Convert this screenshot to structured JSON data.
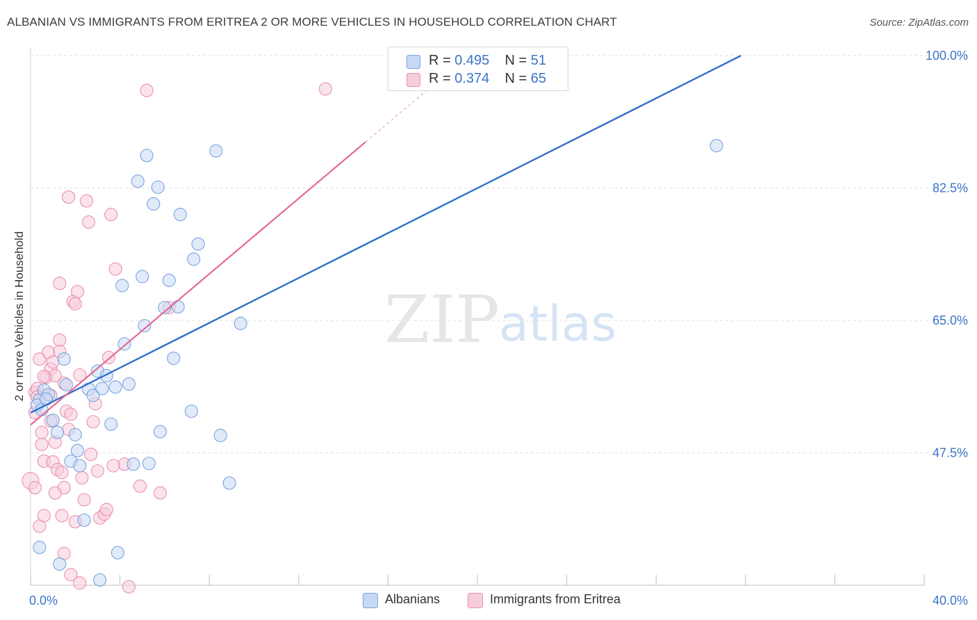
{
  "title": "ALBANIAN VS IMMIGRANTS FROM ERITREA 2 OR MORE VEHICLES IN HOUSEHOLD CORRELATION CHART",
  "source": "Source: ZipAtlas.com",
  "watermark": {
    "zip": "ZIP",
    "atlas": "atlas"
  },
  "colors": {
    "blue_fill": "#c6d8f4",
    "blue_stroke": "#7aa3de",
    "blue_line": "#2f6fcd",
    "pink_fill": "#f7ccdc",
    "pink_stroke": "#ea8fb0",
    "pink_line": "#e36a93",
    "axis_text": "#3b74c8",
    "grid": "#e2e2e2"
  },
  "legend": {
    "rows": [
      {
        "r_label": "R =",
        "r_value": "0.495",
        "n_label": "N =",
        "n_value": "51",
        "series": "blue"
      },
      {
        "r_label": "R =",
        "r_value": "0.374",
        "n_label": "N =",
        "n_value": "65",
        "series": "pink"
      }
    ]
  },
  "chart_data": {
    "type": "scatter",
    "title": "ALBANIAN VS IMMIGRANTS FROM ERITREA 2 OR MORE VEHICLES IN HOUSEHOLD CORRELATION CHART",
    "xlabel": "",
    "ylabel": "2 or more Vehicles in Household",
    "xlim": [
      0,
      40
    ],
    "ylim": [
      30,
      100
    ],
    "x_tick_labels": [
      "0.0%",
      "40.0%"
    ],
    "y_ticks": [
      47.5,
      65.0,
      82.5,
      100.0
    ],
    "y_tick_labels": [
      "47.5%",
      "65.0%",
      "82.5%",
      "100.0%"
    ],
    "grid": true,
    "series": [
      {
        "name": "Albanians",
        "color": "blue",
        "r": 0.495,
        "n": 51,
        "trend": {
          "x": [
            0,
            31.8
          ],
          "y": [
            52.8,
            100.0
          ]
        },
        "points": [
          [
            0.4,
            54.5
          ],
          [
            0.6,
            55.8
          ],
          [
            0.8,
            55.2
          ],
          [
            0.3,
            53.8
          ],
          [
            0.5,
            53.2
          ],
          [
            0.7,
            54.6
          ],
          [
            1.0,
            51.8
          ],
          [
            1.2,
            50.2
          ],
          [
            1.5,
            59.9
          ],
          [
            1.6,
            56.5
          ],
          [
            1.8,
            46.4
          ],
          [
            2.0,
            49.9
          ],
          [
            2.1,
            47.8
          ],
          [
            2.2,
            45.8
          ],
          [
            2.4,
            38.6
          ],
          [
            2.6,
            55.9
          ],
          [
            2.8,
            55.1
          ],
          [
            3.0,
            58.3
          ],
          [
            3.2,
            56.0
          ],
          [
            3.4,
            57.7
          ],
          [
            3.6,
            51.3
          ],
          [
            3.8,
            56.2
          ],
          [
            3.9,
            34.3
          ],
          [
            4.1,
            69.6
          ],
          [
            4.2,
            61.9
          ],
          [
            4.4,
            56.6
          ],
          [
            4.6,
            46.0
          ],
          [
            4.8,
            83.4
          ],
          [
            5.0,
            70.8
          ],
          [
            5.1,
            64.3
          ],
          [
            5.2,
            86.8
          ],
          [
            5.3,
            46.1
          ],
          [
            5.5,
            80.4
          ],
          [
            5.7,
            82.6
          ],
          [
            5.8,
            50.3
          ],
          [
            6.0,
            66.7
          ],
          [
            6.2,
            70.3
          ],
          [
            6.4,
            60.0
          ],
          [
            6.6,
            66.8
          ],
          [
            6.7,
            79.0
          ],
          [
            7.2,
            53.0
          ],
          [
            7.3,
            73.1
          ],
          [
            7.5,
            75.1
          ],
          [
            8.3,
            87.4
          ],
          [
            8.5,
            49.8
          ],
          [
            8.9,
            43.5
          ],
          [
            9.4,
            64.6
          ],
          [
            1.3,
            32.8
          ],
          [
            3.1,
            30.7
          ],
          [
            0.4,
            35.0
          ],
          [
            30.7,
            88.1
          ]
        ]
      },
      {
        "name": "Immigrants from Eritrea",
        "color": "pink",
        "r": 0.374,
        "n": 65,
        "trend": {
          "x": [
            0,
            15.0
          ],
          "y": [
            51.2,
            88.6
          ]
        },
        "trend_dashed": {
          "x": [
            15.0,
            18.3
          ],
          "y": [
            88.6,
            96.8
          ]
        },
        "points": [
          [
            0.0,
            43.8
          ],
          [
            0.2,
            55.5
          ],
          [
            0.2,
            52.8
          ],
          [
            0.3,
            56.0
          ],
          [
            0.3,
            54.9
          ],
          [
            0.4,
            59.9
          ],
          [
            0.5,
            50.2
          ],
          [
            0.5,
            48.6
          ],
          [
            0.6,
            46.4
          ],
          [
            0.7,
            57.5
          ],
          [
            0.8,
            60.8
          ],
          [
            0.9,
            58.6
          ],
          [
            0.9,
            51.7
          ],
          [
            1.0,
            46.3
          ],
          [
            1.0,
            59.5
          ],
          [
            1.1,
            57.7
          ],
          [
            1.1,
            48.9
          ],
          [
            1.2,
            45.3
          ],
          [
            1.3,
            62.4
          ],
          [
            1.3,
            60.9
          ],
          [
            1.3,
            69.9
          ],
          [
            1.4,
            44.9
          ],
          [
            1.5,
            42.9
          ],
          [
            1.5,
            56.7
          ],
          [
            1.6,
            53.0
          ],
          [
            1.7,
            50.6
          ],
          [
            1.8,
            52.6
          ],
          [
            1.9,
            67.5
          ],
          [
            2.0,
            67.2
          ],
          [
            2.1,
            68.8
          ],
          [
            2.2,
            57.8
          ],
          [
            2.3,
            44.2
          ],
          [
            2.4,
            41.3
          ],
          [
            2.5,
            80.8
          ],
          [
            2.6,
            78.0
          ],
          [
            2.7,
            47.3
          ],
          [
            2.9,
            54.0
          ],
          [
            3.0,
            45.1
          ],
          [
            3.1,
            38.9
          ],
          [
            3.3,
            39.4
          ],
          [
            3.5,
            60.1
          ],
          [
            3.6,
            79.0
          ],
          [
            3.8,
            71.8
          ],
          [
            4.2,
            46.0
          ],
          [
            4.4,
            29.8
          ],
          [
            5.2,
            95.4
          ],
          [
            5.8,
            42.2
          ],
          [
            6.2,
            66.7
          ],
          [
            0.6,
            39.2
          ],
          [
            1.4,
            39.2
          ],
          [
            1.5,
            34.2
          ],
          [
            1.8,
            31.4
          ],
          [
            2.0,
            38.4
          ],
          [
            2.2,
            30.3
          ],
          [
            0.2,
            42.9
          ],
          [
            0.4,
            37.8
          ],
          [
            0.9,
            55.1
          ],
          [
            1.1,
            42.2
          ],
          [
            0.6,
            57.6
          ],
          [
            1.7,
            81.3
          ],
          [
            2.8,
            51.6
          ],
          [
            3.4,
            40.0
          ],
          [
            3.7,
            45.8
          ],
          [
            4.9,
            43.1
          ],
          [
            13.2,
            95.6
          ]
        ]
      }
    ]
  },
  "bottom_legend": [
    {
      "label": "Albanians",
      "series": "blue"
    },
    {
      "label": "Immigrants from Eritrea",
      "series": "pink"
    }
  ]
}
